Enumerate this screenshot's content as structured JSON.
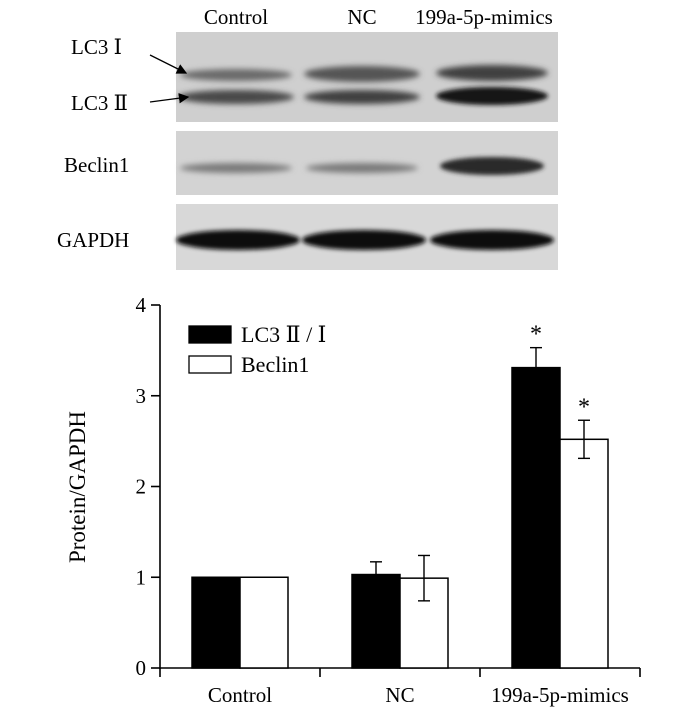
{
  "blot": {
    "lanes": [
      "Control",
      "NC",
      "199a-5p-mimics"
    ],
    "rows": [
      {
        "id": "lc3",
        "labels": [
          "LC3 Ⅰ",
          "LC3 Ⅱ"
        ]
      },
      {
        "id": "beclin1",
        "labels": [
          "Beclin1"
        ]
      },
      {
        "id": "gapdh",
        "labels": [
          "GAPDH"
        ]
      }
    ]
  },
  "chart_data": {
    "type": "bar",
    "categories": [
      "Control",
      "NC",
      "199a-5p-mimics"
    ],
    "ylabel": "Protein/GAPDH",
    "xlabel": "",
    "ylim": [
      0,
      4
    ],
    "yticks": [
      0,
      1,
      2,
      3,
      4
    ],
    "legend": "top-left",
    "grid": false,
    "series": [
      {
        "name": "LC3 Ⅱ / Ⅰ",
        "values": [
          1.0,
          1.03,
          3.31
        ],
        "errors": [
          0,
          0.14,
          0.22
        ],
        "fill": "#000000",
        "significance": [
          "",
          "",
          "*"
        ]
      },
      {
        "name": "Beclin1",
        "values": [
          1.0,
          0.99,
          2.52
        ],
        "errors": [
          0,
          0.25,
          0.21
        ],
        "fill": "#ffffff",
        "significance": [
          "",
          "",
          "*"
        ]
      }
    ]
  }
}
